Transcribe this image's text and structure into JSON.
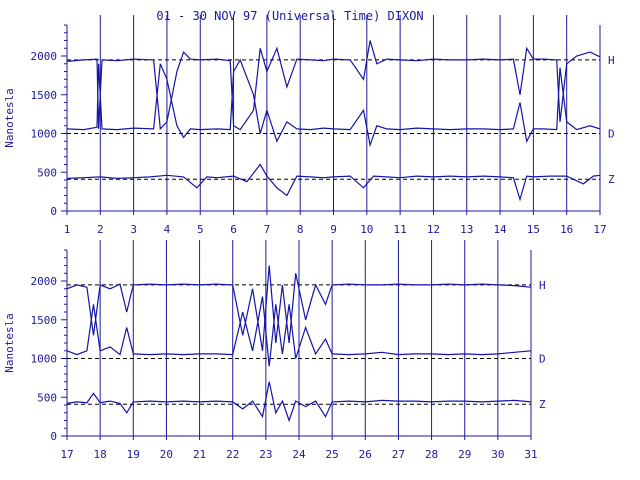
{
  "title": "01 - 30 NOV 97 (Universal Time) DIXON",
  "colors": {
    "ink": "#1a1aa0",
    "trace": "#1414a8",
    "baseline": "#000000",
    "background": "#ffffff"
  },
  "chart_data": [
    {
      "type": "line",
      "panel": "top",
      "ylabel": "Nanotesla",
      "ylim": [
        0,
        2400
      ],
      "yticks": [
        0,
        500,
        1000,
        1500,
        2000
      ],
      "xlim": [
        1,
        17
      ],
      "xticks": [
        "1",
        "2",
        "3",
        "4",
        "5",
        "6",
        "7",
        "8",
        "9",
        "10",
        "11",
        "12",
        "13",
        "14",
        "15",
        "16",
        "17"
      ],
      "series": [
        {
          "name": "H",
          "baseline": 1950,
          "points": [
            [
              1,
              1930
            ],
            [
              1.5,
              1950
            ],
            [
              1.9,
              1960
            ],
            [
              1.95,
              1060
            ],
            [
              2.05,
              1950
            ],
            [
              2.5,
              1940
            ],
            [
              3,
              1960
            ],
            [
              3.6,
              1950
            ],
            [
              3.8,
              1060
            ],
            [
              4,
              1150
            ],
            [
              4.3,
              1800
            ],
            [
              4.5,
              2050
            ],
            [
              4.7,
              1960
            ],
            [
              5,
              1950
            ],
            [
              5.5,
              1960
            ],
            [
              5.9,
              1940
            ],
            [
              6,
              1100
            ],
            [
              6.2,
              1050
            ],
            [
              6.6,
              1300
            ],
            [
              6.8,
              2100
            ],
            [
              7,
              1800
            ],
            [
              7.3,
              2100
            ],
            [
              7.6,
              1600
            ],
            [
              7.9,
              1960
            ],
            [
              8.3,
              1950
            ],
            [
              8.7,
              1940
            ],
            [
              9,
              1960
            ],
            [
              9.5,
              1950
            ],
            [
              9.9,
              1700
            ],
            [
              10.1,
              2200
            ],
            [
              10.3,
              1900
            ],
            [
              10.6,
              1960
            ],
            [
              11,
              1950
            ],
            [
              11.5,
              1940
            ],
            [
              12,
              1960
            ],
            [
              12.5,
              1950
            ],
            [
              13,
              1950
            ],
            [
              13.5,
              1960
            ],
            [
              14,
              1950
            ],
            [
              14.4,
              1960
            ],
            [
              14.6,
              1500
            ],
            [
              14.8,
              2100
            ],
            [
              15,
              1960
            ],
            [
              15.3,
              1960
            ],
            [
              15.7,
              1950
            ],
            [
              15.8,
              1150
            ],
            [
              16,
              1900
            ],
            [
              16.3,
              2000
            ],
            [
              16.7,
              2050
            ],
            [
              17,
              1990
            ]
          ]
        },
        {
          "name": "D",
          "baseline": 1000,
          "points": [
            [
              1,
              1060
            ],
            [
              1.5,
              1050
            ],
            [
              1.9,
              1080
            ],
            [
              1.95,
              1900
            ],
            [
              2.05,
              1060
            ],
            [
              2.5,
              1050
            ],
            [
              3,
              1070
            ],
            [
              3.6,
              1060
            ],
            [
              3.8,
              1900
            ],
            [
              4,
              1700
            ],
            [
              4.3,
              1100
            ],
            [
              4.5,
              950
            ],
            [
              4.7,
              1060
            ],
            [
              5,
              1050
            ],
            [
              5.5,
              1060
            ],
            [
              5.9,
              1050
            ],
            [
              6,
              1800
            ],
            [
              6.2,
              1950
            ],
            [
              6.6,
              1500
            ],
            [
              6.8,
              1000
            ],
            [
              7,
              1300
            ],
            [
              7.3,
              900
            ],
            [
              7.6,
              1150
            ],
            [
              7.9,
              1060
            ],
            [
              8.3,
              1050
            ],
            [
              8.7,
              1070
            ],
            [
              9,
              1060
            ],
            [
              9.5,
              1050
            ],
            [
              9.9,
              1300
            ],
            [
              10.1,
              850
            ],
            [
              10.3,
              1100
            ],
            [
              10.6,
              1060
            ],
            [
              11,
              1050
            ],
            [
              11.5,
              1070
            ],
            [
              12,
              1060
            ],
            [
              12.5,
              1050
            ],
            [
              13,
              1060
            ],
            [
              13.5,
              1060
            ],
            [
              14,
              1050
            ],
            [
              14.4,
              1060
            ],
            [
              14.6,
              1400
            ],
            [
              14.8,
              900
            ],
            [
              15,
              1060
            ],
            [
              15.3,
              1060
            ],
            [
              15.7,
              1050
            ],
            [
              15.8,
              1850
            ],
            [
              16,
              1150
            ],
            [
              16.3,
              1050
            ],
            [
              16.7,
              1100
            ],
            [
              17,
              1060
            ]
          ]
        },
        {
          "name": "Z",
          "baseline": 410,
          "points": [
            [
              1,
              420
            ],
            [
              1.5,
              430
            ],
            [
              2,
              440
            ],
            [
              2.5,
              420
            ],
            [
              3,
              430
            ],
            [
              3.5,
              440
            ],
            [
              4,
              460
            ],
            [
              4.5,
              440
            ],
            [
              4.9,
              300
            ],
            [
              5.2,
              440
            ],
            [
              5.5,
              430
            ],
            [
              6,
              450
            ],
            [
              6.4,
              380
            ],
            [
              6.8,
              600
            ],
            [
              7,
              450
            ],
            [
              7.3,
              300
            ],
            [
              7.6,
              200
            ],
            [
              7.9,
              450
            ],
            [
              8.3,
              440
            ],
            [
              8.7,
              430
            ],
            [
              9,
              440
            ],
            [
              9.5,
              450
            ],
            [
              9.9,
              300
            ],
            [
              10.2,
              450
            ],
            [
              10.6,
              440
            ],
            [
              11,
              430
            ],
            [
              11.5,
              450
            ],
            [
              12,
              440
            ],
            [
              12.5,
              450
            ],
            [
              13,
              440
            ],
            [
              13.5,
              450
            ],
            [
              14,
              440
            ],
            [
              14.4,
              430
            ],
            [
              14.6,
              150
            ],
            [
              14.8,
              450
            ],
            [
              15,
              440
            ],
            [
              15.5,
              450
            ],
            [
              16,
              450
            ],
            [
              16.5,
              350
            ],
            [
              16.8,
              450
            ],
            [
              17,
              460
            ]
          ]
        }
      ]
    },
    {
      "type": "line",
      "panel": "bottom",
      "ylabel": "Nanotesla",
      "ylim": [
        0,
        2400
      ],
      "yticks": [
        0,
        500,
        1000,
        1500,
        2000
      ],
      "xlim": [
        17,
        31
      ],
      "xticks": [
        "17",
        "18",
        "19",
        "20",
        "21",
        "22",
        "23",
        "24",
        "25",
        "26",
        "27",
        "28",
        "29",
        "30",
        "31"
      ],
      "series": [
        {
          "name": "H",
          "baseline": 1950,
          "points": [
            [
              17,
              1900
            ],
            [
              17.3,
              1950
            ],
            [
              17.6,
              1920
            ],
            [
              17.8,
              1300
            ],
            [
              18,
              1950
            ],
            [
              18.3,
              1900
            ],
            [
              18.6,
              1960
            ],
            [
              18.8,
              1600
            ],
            [
              19,
              1950
            ],
            [
              19.5,
              1960
            ],
            [
              20,
              1950
            ],
            [
              20.5,
              1960
            ],
            [
              21,
              1950
            ],
            [
              21.5,
              1960
            ],
            [
              22,
              1950
            ],
            [
              22.3,
              1300
            ],
            [
              22.6,
              1900
            ],
            [
              22.9,
              1100
            ],
            [
              23.1,
              2200
            ],
            [
              23.3,
              1200
            ],
            [
              23.5,
              1950
            ],
            [
              23.7,
              1200
            ],
            [
              23.9,
              2100
            ],
            [
              24.2,
              1500
            ],
            [
              24.5,
              1950
            ],
            [
              24.8,
              1700
            ],
            [
              25,
              1950
            ],
            [
              25.5,
              1960
            ],
            [
              26,
              1950
            ],
            [
              26.5,
              1950
            ],
            [
              27,
              1960
            ],
            [
              27.5,
              1950
            ],
            [
              28,
              1950
            ],
            [
              28.5,
              1960
            ],
            [
              29,
              1950
            ],
            [
              29.5,
              1960
            ],
            [
              30,
              1950
            ],
            [
              30.5,
              1940
            ],
            [
              31,
              1920
            ]
          ]
        },
        {
          "name": "D",
          "baseline": 1000,
          "points": [
            [
              17,
              1100
            ],
            [
              17.3,
              1050
            ],
            [
              17.6,
              1100
            ],
            [
              17.8,
              1700
            ],
            [
              18,
              1100
            ],
            [
              18.3,
              1150
            ],
            [
              18.6,
              1050
            ],
            [
              18.8,
              1400
            ],
            [
              19,
              1060
            ],
            [
              19.5,
              1050
            ],
            [
              20,
              1060
            ],
            [
              20.5,
              1050
            ],
            [
              21,
              1060
            ],
            [
              21.5,
              1060
            ],
            [
              22,
              1050
            ],
            [
              22.3,
              1600
            ],
            [
              22.6,
              1100
            ],
            [
              22.9,
              1800
            ],
            [
              23.1,
              900
            ],
            [
              23.3,
              1700
            ],
            [
              23.5,
              1060
            ],
            [
              23.7,
              1700
            ],
            [
              23.9,
              1000
            ],
            [
              24.2,
              1400
            ],
            [
              24.5,
              1060
            ],
            [
              24.8,
              1250
            ],
            [
              25,
              1060
            ],
            [
              25.5,
              1050
            ],
            [
              26,
              1060
            ],
            [
              26.5,
              1080
            ],
            [
              27,
              1050
            ],
            [
              27.5,
              1060
            ],
            [
              28,
              1060
            ],
            [
              28.5,
              1050
            ],
            [
              29,
              1060
            ],
            [
              29.5,
              1050
            ],
            [
              30,
              1060
            ],
            [
              30.5,
              1080
            ],
            [
              31,
              1100
            ]
          ]
        },
        {
          "name": "Z",
          "baseline": 410,
          "points": [
            [
              17,
              420
            ],
            [
              17.3,
              440
            ],
            [
              17.6,
              430
            ],
            [
              17.8,
              550
            ],
            [
              18,
              430
            ],
            [
              18.3,
              450
            ],
            [
              18.6,
              420
            ],
            [
              18.8,
              300
            ],
            [
              19,
              440
            ],
            [
              19.5,
              450
            ],
            [
              20,
              440
            ],
            [
              20.5,
              450
            ],
            [
              21,
              440
            ],
            [
              21.5,
              450
            ],
            [
              22,
              440
            ],
            [
              22.3,
              350
            ],
            [
              22.6,
              450
            ],
            [
              22.9,
              250
            ],
            [
              23.1,
              700
            ],
            [
              23.3,
              300
            ],
            [
              23.5,
              450
            ],
            [
              23.7,
              200
            ],
            [
              23.9,
              450
            ],
            [
              24.2,
              380
            ],
            [
              24.5,
              450
            ],
            [
              24.8,
              250
            ],
            [
              25,
              440
            ],
            [
              25.5,
              450
            ],
            [
              26,
              440
            ],
            [
              26.5,
              460
            ],
            [
              27,
              450
            ],
            [
              27.5,
              450
            ],
            [
              28,
              440
            ],
            [
              28.5,
              450
            ],
            [
              29,
              450
            ],
            [
              29.5,
              440
            ],
            [
              30,
              450
            ],
            [
              30.5,
              460
            ],
            [
              31,
              440
            ]
          ]
        }
      ]
    }
  ]
}
